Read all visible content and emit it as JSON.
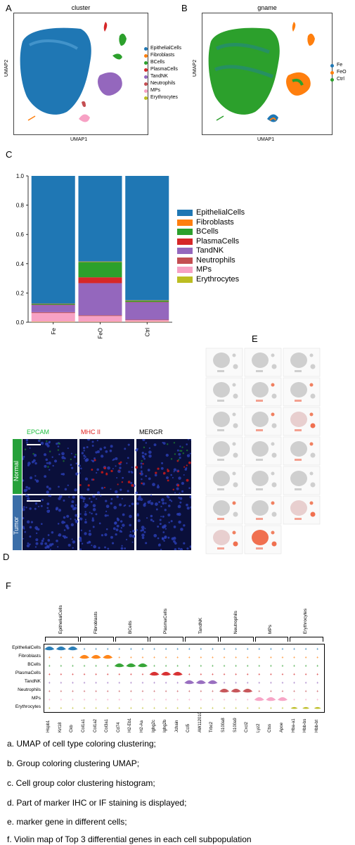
{
  "panels": {
    "a": "A",
    "b": "B",
    "c": "C",
    "d": "D",
    "e": "E",
    "f": "F"
  },
  "umap_a": {
    "title": "cluster",
    "xlabel": "UMAP1",
    "ylabel": "UMAP2",
    "legend": [
      {
        "label": "EpithelialCells",
        "color": "#1f77b4"
      },
      {
        "label": "Fibroblasts",
        "color": "#ff7f0e"
      },
      {
        "label": "BCells",
        "color": "#2ca02c"
      },
      {
        "label": "PlasmaCells",
        "color": "#d62728"
      },
      {
        "label": "TandNK",
        "color": "#9467bd"
      },
      {
        "label": "Neutrophils",
        "color": "#c44e52"
      },
      {
        "label": "MPs",
        "color": "#f7a1c4"
      },
      {
        "label": "Erythrocytes",
        "color": "#bcbd22"
      }
    ]
  },
  "umap_b": {
    "title": "gname",
    "xlabel": "UMAP1",
    "ylabel": "UMAP2",
    "legend": [
      {
        "label": "Fe",
        "color": "#1f77b4"
      },
      {
        "label": "FeO",
        "color": "#ff7f0e"
      },
      {
        "label": "Ctrl",
        "color": "#2ca02c"
      }
    ]
  },
  "chart_data": {
    "type": "bar",
    "stacked": true,
    "categories": [
      "Fe",
      "FeO",
      "Ctrl"
    ],
    "ylim": [
      0,
      1.0
    ],
    "yticks": [
      "0.0",
      "0.2",
      "0.4",
      "0.6",
      "0.8",
      "1.0"
    ],
    "series": [
      {
        "name": "Erythrocytes",
        "color": "#bcbd22",
        "values": [
          0.003,
          0.002,
          0.002
        ]
      },
      {
        "name": "MPs",
        "color": "#f7a1c4",
        "values": [
          0.06,
          0.04,
          0.012
        ]
      },
      {
        "name": "Neutrophils",
        "color": "#c44e52",
        "values": [
          0.005,
          0.005,
          0.003
        ]
      },
      {
        "name": "TandNK",
        "color": "#9467bd",
        "values": [
          0.05,
          0.22,
          0.12
        ]
      },
      {
        "name": "PlasmaCells",
        "color": "#d62728",
        "values": [
          0.002,
          0.04,
          0.002
        ]
      },
      {
        "name": "BCells",
        "color": "#2ca02c",
        "values": [
          0.005,
          0.105,
          0.008
        ]
      },
      {
        "name": "Fibroblasts",
        "color": "#ff7f0e",
        "values": [
          0.002,
          0.003,
          0.003
        ]
      },
      {
        "name": "EpithelialCells",
        "color": "#1f77b4",
        "values": [
          0.873,
          0.585,
          0.85
        ]
      }
    ],
    "legend_order": [
      "EpithelialCells",
      "Fibroblasts",
      "BCells",
      "PlasmaCells",
      "TandNK",
      "Neutrophils",
      "MPs",
      "Erythrocytes"
    ]
  },
  "ihc": {
    "headers": [
      {
        "label": "EPCAM",
        "color": "#1fbf3f"
      },
      {
        "label": "MHC II",
        "color": "#e02020"
      },
      {
        "label": "MERGR",
        "color": "#000000"
      }
    ],
    "rows": [
      "Normal",
      "Tumor"
    ]
  },
  "violin": {
    "groups": [
      "EpithelialCells",
      "Fibroblasts",
      "BCells",
      "PlasmaCells",
      "TandNK",
      "Neutrophils",
      "MPs",
      "Erythrocytes"
    ],
    "row_labels": [
      "EpithelialCells",
      "Fibroblasts",
      "BCells",
      "PlasmaCells",
      "TandNK",
      "Neutrophils",
      "MPs",
      "Erythrocytes"
    ],
    "genes": [
      "Hspb1",
      "Krt18",
      "Ckb",
      "Col1a1",
      "Col1a2",
      "Col3a1",
      "Cd74",
      "H2-Eb1",
      "H2-Aa",
      "Ighg2c",
      "Ighg2b",
      "Jchain",
      "Ccl5",
      "AW112010",
      "Trbc2",
      "S100a8",
      "S100a9",
      "Cxcl2",
      "Lyz2",
      "Ctss",
      "Apoe",
      "Hba-a1",
      "Hbb-bs",
      "Hbb-bt"
    ]
  },
  "captions": [
    "a.  UMAP of cell type coloring clustering;",
    "b.  Group coloring clustering UMAP;",
    "c.  Cell group color clustering histogram;",
    "d.  Part of marker IHC or IF staining is displayed;",
    "e.  marker gene in different cells;",
    "f.  Violin map of Top 3 differential genes in each cell subpopulation"
  ]
}
